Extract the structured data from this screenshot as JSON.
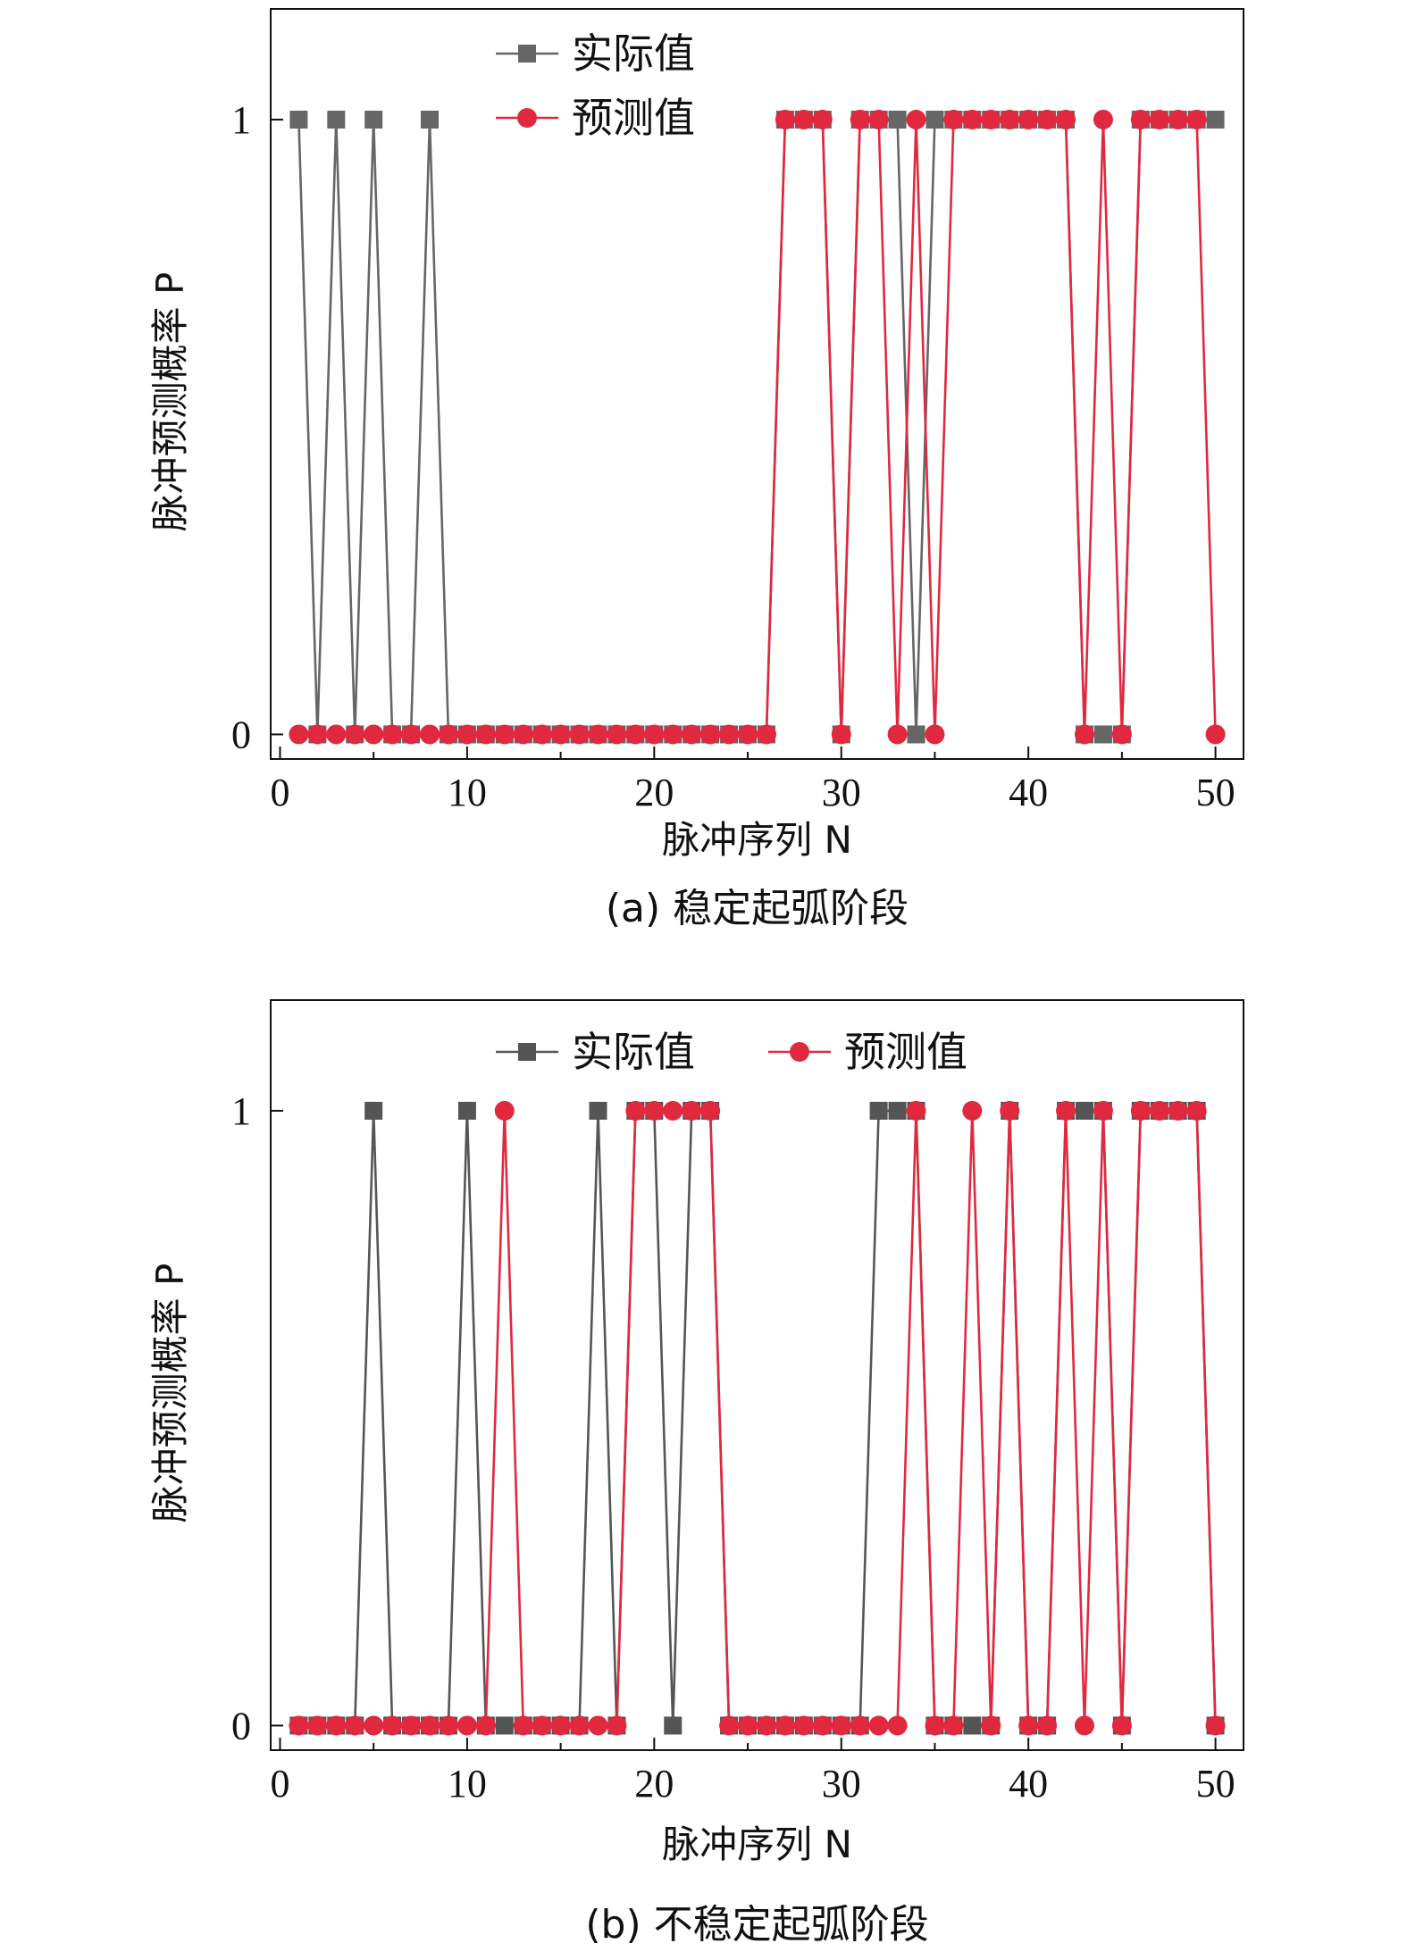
{
  "chart_data": [
    {
      "type": "line",
      "caption": "(a) 稳定起弧阶段",
      "xlabel": "脉冲序列 N",
      "ylabel": "脉冲预测概率 P",
      "xlim": [
        -0.5,
        51.5
      ],
      "ylim": [
        -0.04,
        1.18
      ],
      "xticks": [
        0,
        10,
        20,
        30,
        40,
        50
      ],
      "xtick_labels": [
        "0",
        "10",
        "20",
        "30",
        "40",
        "50"
      ],
      "yticks": [
        0,
        1
      ],
      "ytick_labels": [
        "0",
        "1"
      ],
      "legend_position": "top-center",
      "legend_layout": "vertical",
      "x": [
        1,
        2,
        3,
        4,
        5,
        6,
        7,
        8,
        9,
        10,
        11,
        12,
        13,
        14,
        15,
        16,
        17,
        18,
        19,
        20,
        21,
        22,
        23,
        24,
        25,
        26,
        27,
        28,
        29,
        30,
        31,
        32,
        33,
        34,
        35,
        36,
        37,
        38,
        39,
        40,
        41,
        42,
        43,
        44,
        45,
        46,
        47,
        48,
        49,
        50
      ],
      "series": [
        {
          "name": "实际值",
          "color": "#666666",
          "marker": "square",
          "values": [
            1,
            0,
            1,
            0,
            1,
            0,
            0,
            1,
            0,
            0,
            0,
            0,
            0,
            0,
            0,
            0,
            0,
            0,
            0,
            0,
            0,
            0,
            0,
            0,
            0,
            0,
            1,
            1,
            1,
            0,
            1,
            1,
            1,
            0,
            1,
            1,
            1,
            1,
            1,
            1,
            1,
            1,
            0,
            0,
            0,
            1,
            1,
            1,
            1,
            1
          ]
        },
        {
          "name": "预测值",
          "color": "#e0293e",
          "marker": "circle",
          "values": [
            0,
            0,
            0,
            0,
            0,
            0,
            0,
            0,
            0,
            0,
            0,
            0,
            0,
            0,
            0,
            0,
            0,
            0,
            0,
            0,
            0,
            0,
            0,
            0,
            0,
            0,
            1,
            1,
            1,
            0,
            1,
            1,
            0,
            1,
            0,
            1,
            1,
            1,
            1,
            1,
            1,
            1,
            0,
            1,
            0,
            1,
            1,
            1,
            1,
            0
          ]
        }
      ]
    },
    {
      "type": "line",
      "caption": "(b) 不稳定起弧阶段",
      "xlabel": "脉冲序列 N",
      "ylabel": "脉冲预测概率 P",
      "xlim": [
        -0.5,
        51.5
      ],
      "ylim": [
        -0.04,
        1.18
      ],
      "xticks": [
        0,
        10,
        20,
        30,
        40,
        50
      ],
      "xtick_labels": [
        "0",
        "10",
        "20",
        "30",
        "40",
        "50"
      ],
      "yticks": [
        0,
        1
      ],
      "ytick_labels": [
        "0",
        "1"
      ],
      "legend_position": "top-center",
      "legend_layout": "horizontal",
      "x": [
        1,
        2,
        3,
        4,
        5,
        6,
        7,
        8,
        9,
        10,
        11,
        12,
        13,
        14,
        15,
        16,
        17,
        18,
        19,
        20,
        21,
        22,
        23,
        24,
        25,
        26,
        27,
        28,
        29,
        30,
        31,
        32,
        33,
        34,
        35,
        36,
        37,
        38,
        39,
        40,
        41,
        42,
        43,
        44,
        45,
        46,
        47,
        48,
        49,
        50
      ],
      "series": [
        {
          "name": "实际值",
          "color": "#555555",
          "marker": "square",
          "values": [
            0,
            0,
            0,
            0,
            1,
            0,
            0,
            0,
            0,
            1,
            0,
            0,
            0,
            0,
            0,
            0,
            1,
            0,
            1,
            1,
            0,
            1,
            1,
            0,
            0,
            0,
            0,
            0,
            0,
            0,
            0,
            1,
            1,
            1,
            0,
            0,
            0,
            0,
            1,
            0,
            0,
            1,
            1,
            1,
            0,
            1,
            1,
            1,
            1,
            0
          ]
        },
        {
          "name": "预测值",
          "color": "#e0293e",
          "marker": "circle",
          "values": [
            0,
            0,
            0,
            0,
            0,
            0,
            0,
            0,
            0,
            0,
            0,
            1,
            0,
            0,
            0,
            0,
            0,
            0,
            1,
            1,
            1,
            1,
            1,
            0,
            0,
            0,
            0,
            0,
            0,
            0,
            0,
            0,
            0,
            1,
            0,
            0,
            1,
            0,
            1,
            0,
            0,
            1,
            0,
            1,
            0,
            1,
            1,
            1,
            1,
            0
          ]
        }
      ]
    }
  ]
}
